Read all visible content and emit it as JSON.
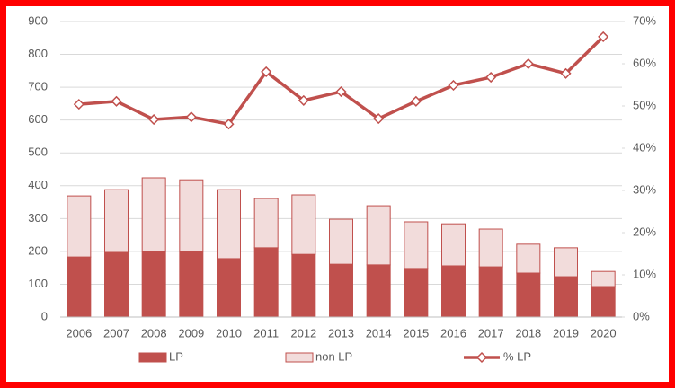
{
  "chart_data": {
    "type": "bar",
    "stacked": true,
    "categories": [
      "2006",
      "2007",
      "2008",
      "2009",
      "2010",
      "2011",
      "2012",
      "2013",
      "2014",
      "2015",
      "2016",
      "2017",
      "2018",
      "2019",
      "2020"
    ],
    "series": [
      {
        "name": "LP",
        "color": "#c0504d",
        "values": [
          183,
          197,
          200,
          200,
          178,
          211,
          191,
          161,
          159,
          148,
          156,
          153,
          134,
          123,
          93
        ]
      },
      {
        "name": "non LP",
        "color": "#f2dcdb",
        "values": [
          186,
          191,
          224,
          218,
          210,
          150,
          181,
          137,
          180,
          142,
          128,
          115,
          88,
          88,
          46
        ]
      },
      {
        "name": "% LP",
        "type": "line",
        "axis": "y2",
        "color": "#c0504d",
        "values": [
          50.4,
          51.1,
          46.8,
          47.4,
          45.7,
          58.1,
          51.3,
          53.4,
          47.0,
          51.1,
          54.9,
          56.8,
          60.0,
          57.7,
          66.4
        ]
      }
    ],
    "ylim": [
      0,
      900
    ],
    "yticks": [
      0,
      100,
      200,
      300,
      400,
      500,
      600,
      700,
      800,
      900
    ],
    "y2lim": [
      0,
      70
    ],
    "y2ticks": [
      {
        "value": 0,
        "label": "0%"
      },
      {
        "value": 10,
        "label": "10%"
      },
      {
        "value": 20,
        "label": "20%"
      },
      {
        "value": 30,
        "label": "30%"
      },
      {
        "value": 40,
        "label": "40%"
      },
      {
        "value": 50,
        "label": "50%"
      },
      {
        "value": 60,
        "label": "60%"
      },
      {
        "value": 70,
        "label": "70%"
      }
    ],
    "grid": true,
    "legend": "bottom"
  }
}
